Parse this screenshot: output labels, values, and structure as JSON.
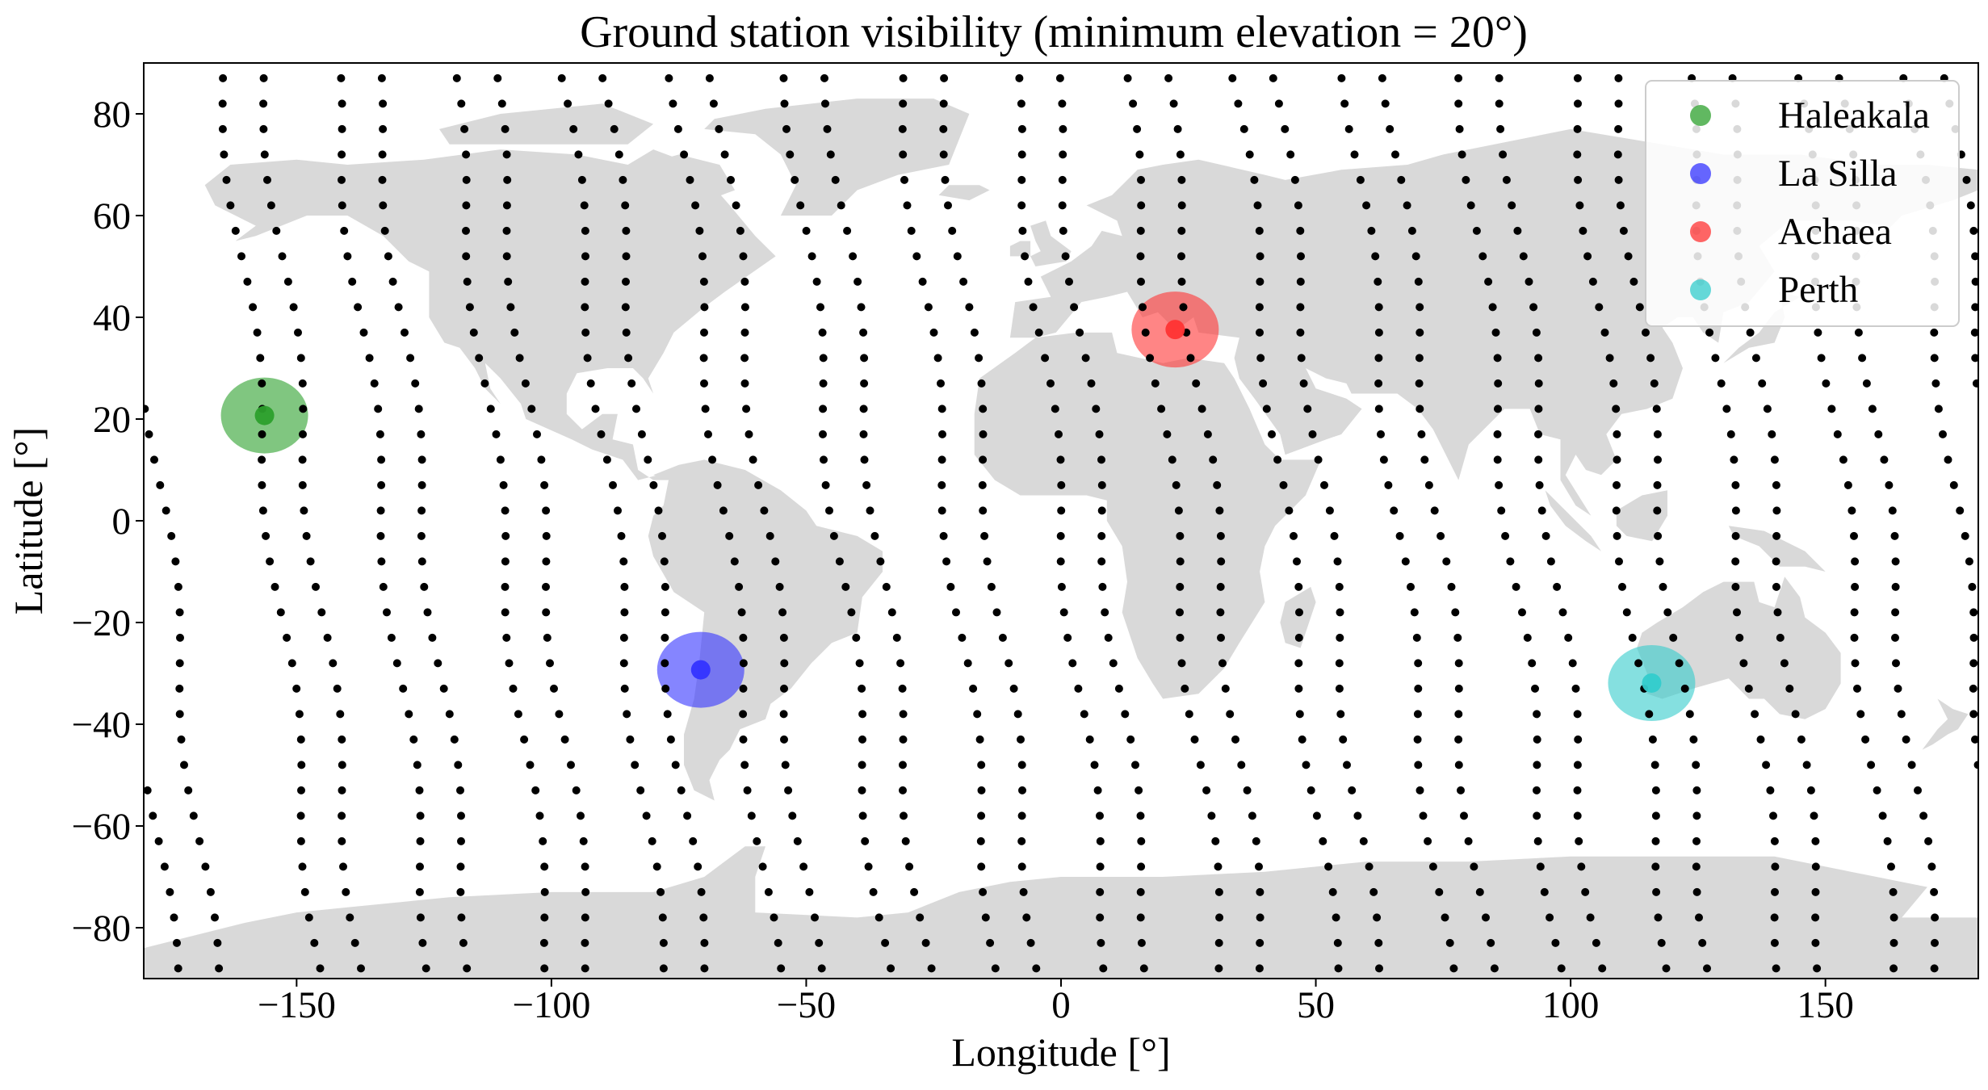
{
  "title": "Ground station visibility (minimum elevation = 20°)",
  "map": {
    "projection": "equirectangular",
    "land_color": "#d9d9d9",
    "background": "#ffffff"
  },
  "axes": {
    "xlabel": "Longitude [°]",
    "ylabel": "Latitude [°]",
    "xlim": [
      -180,
      180
    ],
    "ylim": [
      -90,
      90
    ],
    "xticks": [
      -150,
      -100,
      -50,
      0,
      50,
      100,
      150
    ],
    "xtick_labels": [
      "−150",
      "−100",
      "−50",
      "0",
      "50",
      "100",
      "150"
    ],
    "yticks": [
      80,
      60,
      40,
      20,
      0,
      -20,
      -40,
      -60,
      -80
    ],
    "ytick_labels": [
      "80",
      "60",
      "40",
      "20",
      "0",
      "−20",
      "−40",
      "−60",
      "−80"
    ]
  },
  "stations": [
    {
      "name": "Haleakala",
      "lon": -156.3,
      "lat": 20.7,
      "color": "#2ca02c",
      "label": "Haleakala"
    },
    {
      "name": "La Silla",
      "lon": -70.7,
      "lat": -29.3,
      "color": "#3333ff",
      "label": "La Silla"
    },
    {
      "name": "Achaea",
      "lon": 22.4,
      "lat": 37.6,
      "color": "#ff3333",
      "label": "Achaea"
    },
    {
      "name": "Perth",
      "lon": 115.9,
      "lat": -31.9,
      "color": "#33cccc",
      "label": "Perth"
    }
  ],
  "legend": {
    "placement": "top-right"
  },
  "ground_track": {
    "color": "#000000",
    "pass_longitudes": [
      -155,
      -133,
      -110,
      -88,
      -66,
      -44,
      -22,
      0,
      22,
      44,
      66,
      88,
      110,
      132,
      154,
      176
    ],
    "descending_offset_deg": 8,
    "lat_step_deg": 5
  }
}
